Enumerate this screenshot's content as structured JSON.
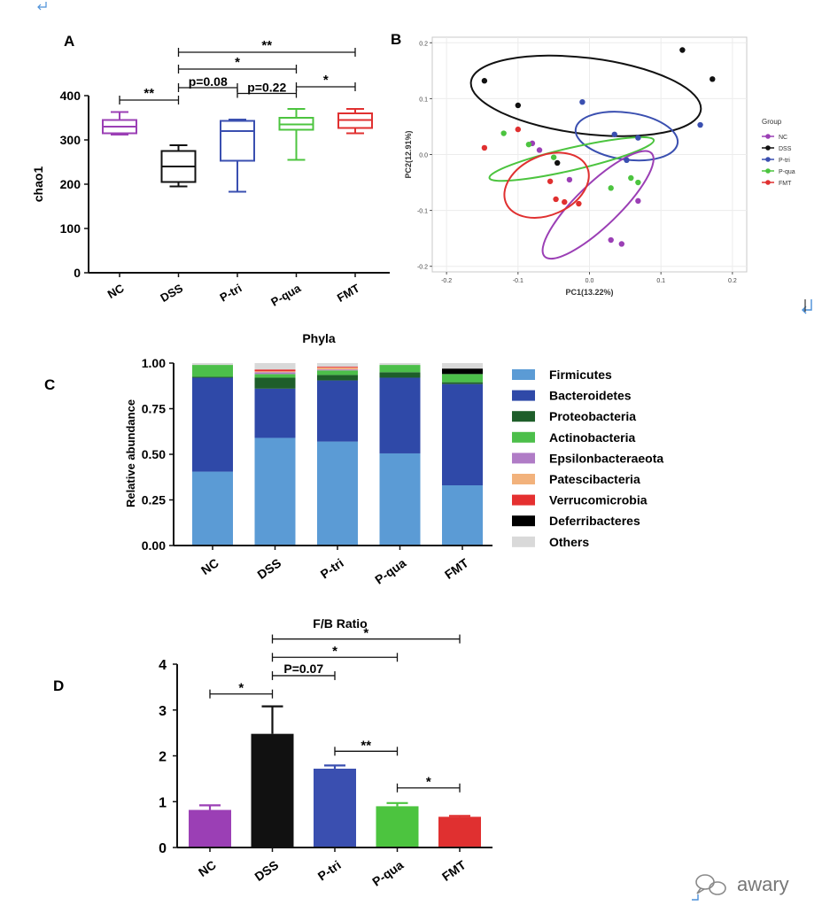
{
  "colors": {
    "NC": "#9b3fb5",
    "DSS": "#111111",
    "P-tri": "#3a4fb0",
    "P-qua": "#4cc43f",
    "FMT": "#e03030",
    "Firmicutes": "#5b9bd5",
    "Bacteroidetes": "#2f49a8",
    "Proteobacteria": "#1e5e2a",
    "Actinobacteria": "#4cbf4a",
    "Epsilonbacteraeota": "#b07cc6",
    "Patescibacteria": "#f2b27c",
    "Verrucomicrobia": "#e53030",
    "Deferribacteres": "#000000",
    "Others": "#d9d9d9",
    "return_mark": "#4a8fd8"
  },
  "chart_data": [
    {
      "panel": "A",
      "type": "box",
      "title": "",
      "xlabel": "",
      "ylabel": "chao1",
      "ylim": [
        0,
        400
      ],
      "yticks": [
        0,
        100,
        200,
        300,
        400
      ],
      "categories": [
        "NC",
        "DSS",
        "P-tri",
        "P-qua",
        "FMT"
      ],
      "boxes": [
        {
          "name": "NC",
          "min": 312,
          "q1": 315,
          "median": 330,
          "q3": 345,
          "max": 363
        },
        {
          "name": "DSS",
          "min": 195,
          "q1": 205,
          "median": 240,
          "q3": 275,
          "max": 288
        },
        {
          "name": "P-tri",
          "min": 183,
          "q1": 253,
          "median": 320,
          "q3": 343,
          "max": 346
        },
        {
          "name": "P-qua",
          "min": 255,
          "q1": 323,
          "median": 335,
          "q3": 350,
          "max": 370
        },
        {
          "name": "FMT",
          "min": 315,
          "q1": 327,
          "median": 345,
          "q3": 360,
          "max": 370
        }
      ],
      "significance": [
        {
          "from": "NC",
          "to": "DSS",
          "label": "**",
          "y": 390
        },
        {
          "from": "DSS",
          "to": "P-tri",
          "label": "p=0.08",
          "y": 418
        },
        {
          "from": "P-tri",
          "to": "P-qua",
          "label": "p=0.22",
          "y": 405
        },
        {
          "from": "P-qua",
          "to": "FMT",
          "label": "*",
          "y": 420
        },
        {
          "from": "DSS",
          "to": "P-qua",
          "label": "*",
          "y": 460
        },
        {
          "from": "DSS",
          "to": "FMT",
          "label": "**",
          "y": 498
        }
      ]
    },
    {
      "panel": "B",
      "type": "scatter",
      "title": "",
      "xlabel": "PC1(13.22%)",
      "ylabel": "PC2(12.91%)",
      "xlim": [
        -0.22,
        0.22
      ],
      "ylim": [
        -0.21,
        0.21
      ],
      "xticks": [
        -0.2,
        -0.1,
        0,
        0.1,
        0.2
      ],
      "xtick_labels": [
        "-0.2",
        "-0.1",
        "0.0",
        "0.1",
        "0.2"
      ],
      "yticks": [
        -0.2,
        -0.1,
        0,
        0.1,
        0.2
      ],
      "ytick_labels": [
        "-0.2",
        "-0.1",
        "0.0",
        "0.1",
        "0.2"
      ],
      "legend_title": "Group",
      "legend_position": "right",
      "series": [
        {
          "name": "NC",
          "points": [
            [
              -0.07,
              0.008
            ],
            [
              -0.028,
              -0.045
            ],
            [
              0.068,
              -0.083
            ],
            [
              0.03,
              -0.153
            ],
            [
              0.045,
              -0.16
            ],
            [
              -0.08,
              0.02
            ]
          ]
        },
        {
          "name": "DSS",
          "points": [
            [
              -0.147,
              0.132
            ],
            [
              -0.1,
              0.088
            ],
            [
              0.13,
              0.187
            ],
            [
              0.172,
              0.135
            ],
            [
              -0.045,
              -0.015
            ]
          ]
        },
        {
          "name": "P-tri",
          "points": [
            [
              -0.01,
              0.094
            ],
            [
              0.035,
              0.036
            ],
            [
              0.068,
              0.03
            ],
            [
              0.155,
              0.053
            ],
            [
              0.052,
              -0.01
            ]
          ]
        },
        {
          "name": "P-qua",
          "points": [
            [
              -0.12,
              0.038
            ],
            [
              -0.085,
              0.018
            ],
            [
              0.03,
              -0.06
            ],
            [
              0.058,
              -0.042
            ],
            [
              0.068,
              -0.05
            ],
            [
              -0.05,
              -0.005
            ]
          ]
        },
        {
          "name": "FMT",
          "points": [
            [
              -0.147,
              0.012
            ],
            [
              -0.1,
              0.045
            ],
            [
              -0.055,
              -0.048
            ],
            [
              -0.047,
              -0.08
            ],
            [
              -0.035,
              -0.085
            ],
            [
              -0.015,
              -0.088
            ]
          ]
        }
      ]
    },
    {
      "panel": "C",
      "type": "bar",
      "stacked": true,
      "title": "Phyla",
      "xlabel": "",
      "ylabel": "Relative abundance",
      "ylim": [
        0,
        1
      ],
      "yticks": [
        0,
        0.25,
        0.5,
        0.75,
        1
      ],
      "ytick_labels": [
        "0.00",
        "0.25",
        "0.50",
        "0.75",
        "1.00"
      ],
      "legend_position": "right",
      "categories": [
        "NC",
        "DSS",
        "P-tri",
        "P-qua",
        "FMT"
      ],
      "series": [
        {
          "name": "Firmicutes",
          "values": [
            0.405,
            0.59,
            0.57,
            0.505,
            0.33
          ]
        },
        {
          "name": "Bacteroidetes",
          "values": [
            0.515,
            0.27,
            0.335,
            0.415,
            0.555
          ]
        },
        {
          "name": "Proteobacteria",
          "values": [
            0.005,
            0.06,
            0.03,
            0.03,
            0.01
          ]
        },
        {
          "name": "Actinobacteria",
          "values": [
            0.065,
            0.02,
            0.025,
            0.04,
            0.045
          ]
        },
        {
          "name": "Epsilonbacteraeota",
          "values": [
            0.0,
            0.01,
            0.005,
            0.0,
            0.0
          ]
        },
        {
          "name": "Patescibacteria",
          "values": [
            0.0,
            0.005,
            0.01,
            0.0,
            0.0
          ]
        },
        {
          "name": "Verrucomicrobia",
          "values": [
            0.0,
            0.01,
            0.005,
            0.0,
            0.0
          ]
        },
        {
          "name": "Deferribacteres",
          "values": [
            0.0,
            0.0,
            0.0,
            0.0,
            0.03
          ]
        },
        {
          "name": "Others",
          "values": [
            0.01,
            0.035,
            0.02,
            0.01,
            0.03
          ]
        }
      ]
    },
    {
      "panel": "D",
      "type": "bar",
      "title": "F/B Ratio",
      "xlabel": "",
      "ylabel": "",
      "ylim": [
        0,
        4
      ],
      "yticks": [
        0,
        1,
        2,
        3,
        4
      ],
      "categories": [
        "NC",
        "DSS",
        "P-tri",
        "P-qua",
        "FMT"
      ],
      "values": [
        0.82,
        2.48,
        1.72,
        0.9,
        0.67
      ],
      "errors": [
        0.1,
        0.6,
        0.07,
        0.07,
        0.02
      ],
      "significance": [
        {
          "from": "NC",
          "to": "DSS",
          "label": "*",
          "y": 3.35
        },
        {
          "from": "DSS",
          "to": "P-tri",
          "label": "P=0.07",
          "y": 3.75
        },
        {
          "from": "P-tri",
          "to": "P-qua",
          "label": "**",
          "y": 2.1
        },
        {
          "from": "P-qua",
          "to": "FMT",
          "label": "*",
          "y": 1.3
        },
        {
          "from": "DSS",
          "to": "P-qua",
          "label": "*",
          "y": 4.15
        },
        {
          "from": "DSS",
          "to": "FMT",
          "label": "*",
          "y": 4.55
        }
      ]
    }
  ],
  "panel_labels": [
    "A",
    "B",
    "C",
    "D"
  ],
  "watermark": "awary"
}
